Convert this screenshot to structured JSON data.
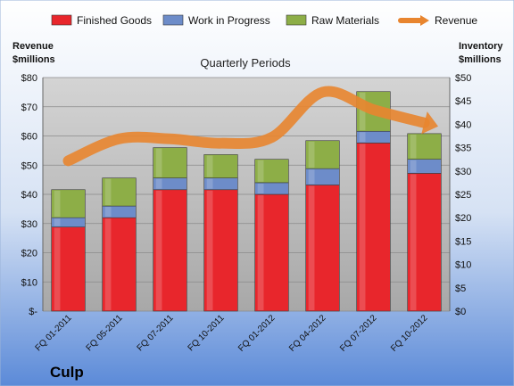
{
  "chart_data": {
    "type": "bar",
    "stacked": true,
    "title": "Quarterly Periods",
    "left_axis_label": [
      "Revenue",
      "$millions"
    ],
    "right_axis_label": [
      "Inventory",
      "$millions"
    ],
    "company": "Culp",
    "categories": [
      "FQ 01-2011",
      "FQ 05-2011",
      "FQ 07-2011",
      "FQ 10-2011",
      "FQ 01-2012",
      "FQ 04-2012",
      "FQ 07-2012",
      "FQ 10-2012"
    ],
    "series": [
      {
        "name": "Finished Goods",
        "axis": "right",
        "color": "#e8262c",
        "values": [
          18.0,
          20.0,
          26.0,
          26.0,
          25.0,
          27.0,
          36.0,
          29.5
        ]
      },
      {
        "name": "Work in Progress",
        "axis": "right",
        "color": "#6d8cc9",
        "values": [
          2.0,
          2.5,
          2.5,
          2.5,
          2.5,
          3.5,
          2.5,
          3.0
        ]
      },
      {
        "name": "Raw Materials",
        "axis": "right",
        "color": "#8dae47",
        "values": [
          6.0,
          6.0,
          6.5,
          5.0,
          5.0,
          6.0,
          8.5,
          5.5
        ]
      },
      {
        "name": "Revenue",
        "axis": "left",
        "type": "line",
        "color": "#e8852f",
        "values": [
          51.5,
          59.0,
          59.0,
          57.5,
          59.5,
          75.0,
          69.0,
          64.5
        ]
      }
    ],
    "left_axis": {
      "min": 0,
      "max": 80,
      "step": 10,
      "tick_labels": [
        "$-",
        "$10",
        "$20",
        "$30",
        "$40",
        "$50",
        "$60",
        "$70",
        "$80"
      ]
    },
    "right_axis": {
      "min": 0,
      "max": 50,
      "step": 5,
      "tick_labels": [
        "$0",
        "$5",
        "$10",
        "$15",
        "$20",
        "$25",
        "$30",
        "$35",
        "$40",
        "$45",
        "$50"
      ]
    },
    "grid": true,
    "legend_position": "top"
  }
}
